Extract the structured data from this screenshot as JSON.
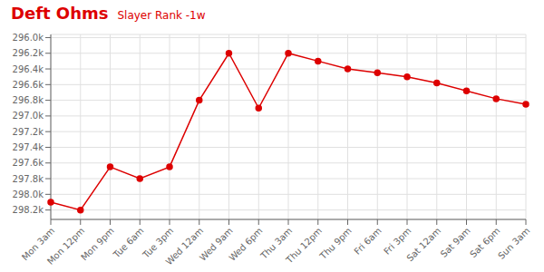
{
  "chart_data": {
    "type": "line",
    "title": "Deft Ohms",
    "subtitle": "Slayer Rank -1w",
    "categories": [
      "Mon 3am",
      "Mon 12pm",
      "Mon 9pm",
      "Tue 6am",
      "Tue 3pm",
      "Wed 12am",
      "Wed 9am",
      "Wed 6pm",
      "Thu 3am",
      "Thu 12pm",
      "Thu 9pm",
      "Fri 6am",
      "Fri 3pm",
      "Sat 12am",
      "Sat 9am",
      "Sat 6pm",
      "Sun 3am"
    ],
    "values": [
      298100,
      298200,
      297650,
      297800,
      297650,
      296800,
      296200,
      296900,
      296200,
      296300,
      296400,
      296450,
      296500,
      296580,
      296680,
      296780,
      296850
    ],
    "color": "#dd0000",
    "marker": "circle",
    "ylim": [
      298320,
      295960
    ],
    "yticks": [
      {
        "value": 296000,
        "label": "296.0k"
      },
      {
        "value": 296200,
        "label": "296.2k"
      },
      {
        "value": 296400,
        "label": "296.4k"
      },
      {
        "value": 296600,
        "label": "296.6k"
      },
      {
        "value": 296800,
        "label": "296.8k"
      },
      {
        "value": 297000,
        "label": "297.0k"
      },
      {
        "value": 297200,
        "label": "297.2k"
      },
      {
        "value": 297400,
        "label": "297.4k"
      },
      {
        "value": 297600,
        "label": "297.6k"
      },
      {
        "value": 297800,
        "label": "297.8k"
      },
      {
        "value": 298000,
        "label": "298.0k"
      },
      {
        "value": 298200,
        "label": "298.2k"
      }
    ],
    "grid": true
  }
}
